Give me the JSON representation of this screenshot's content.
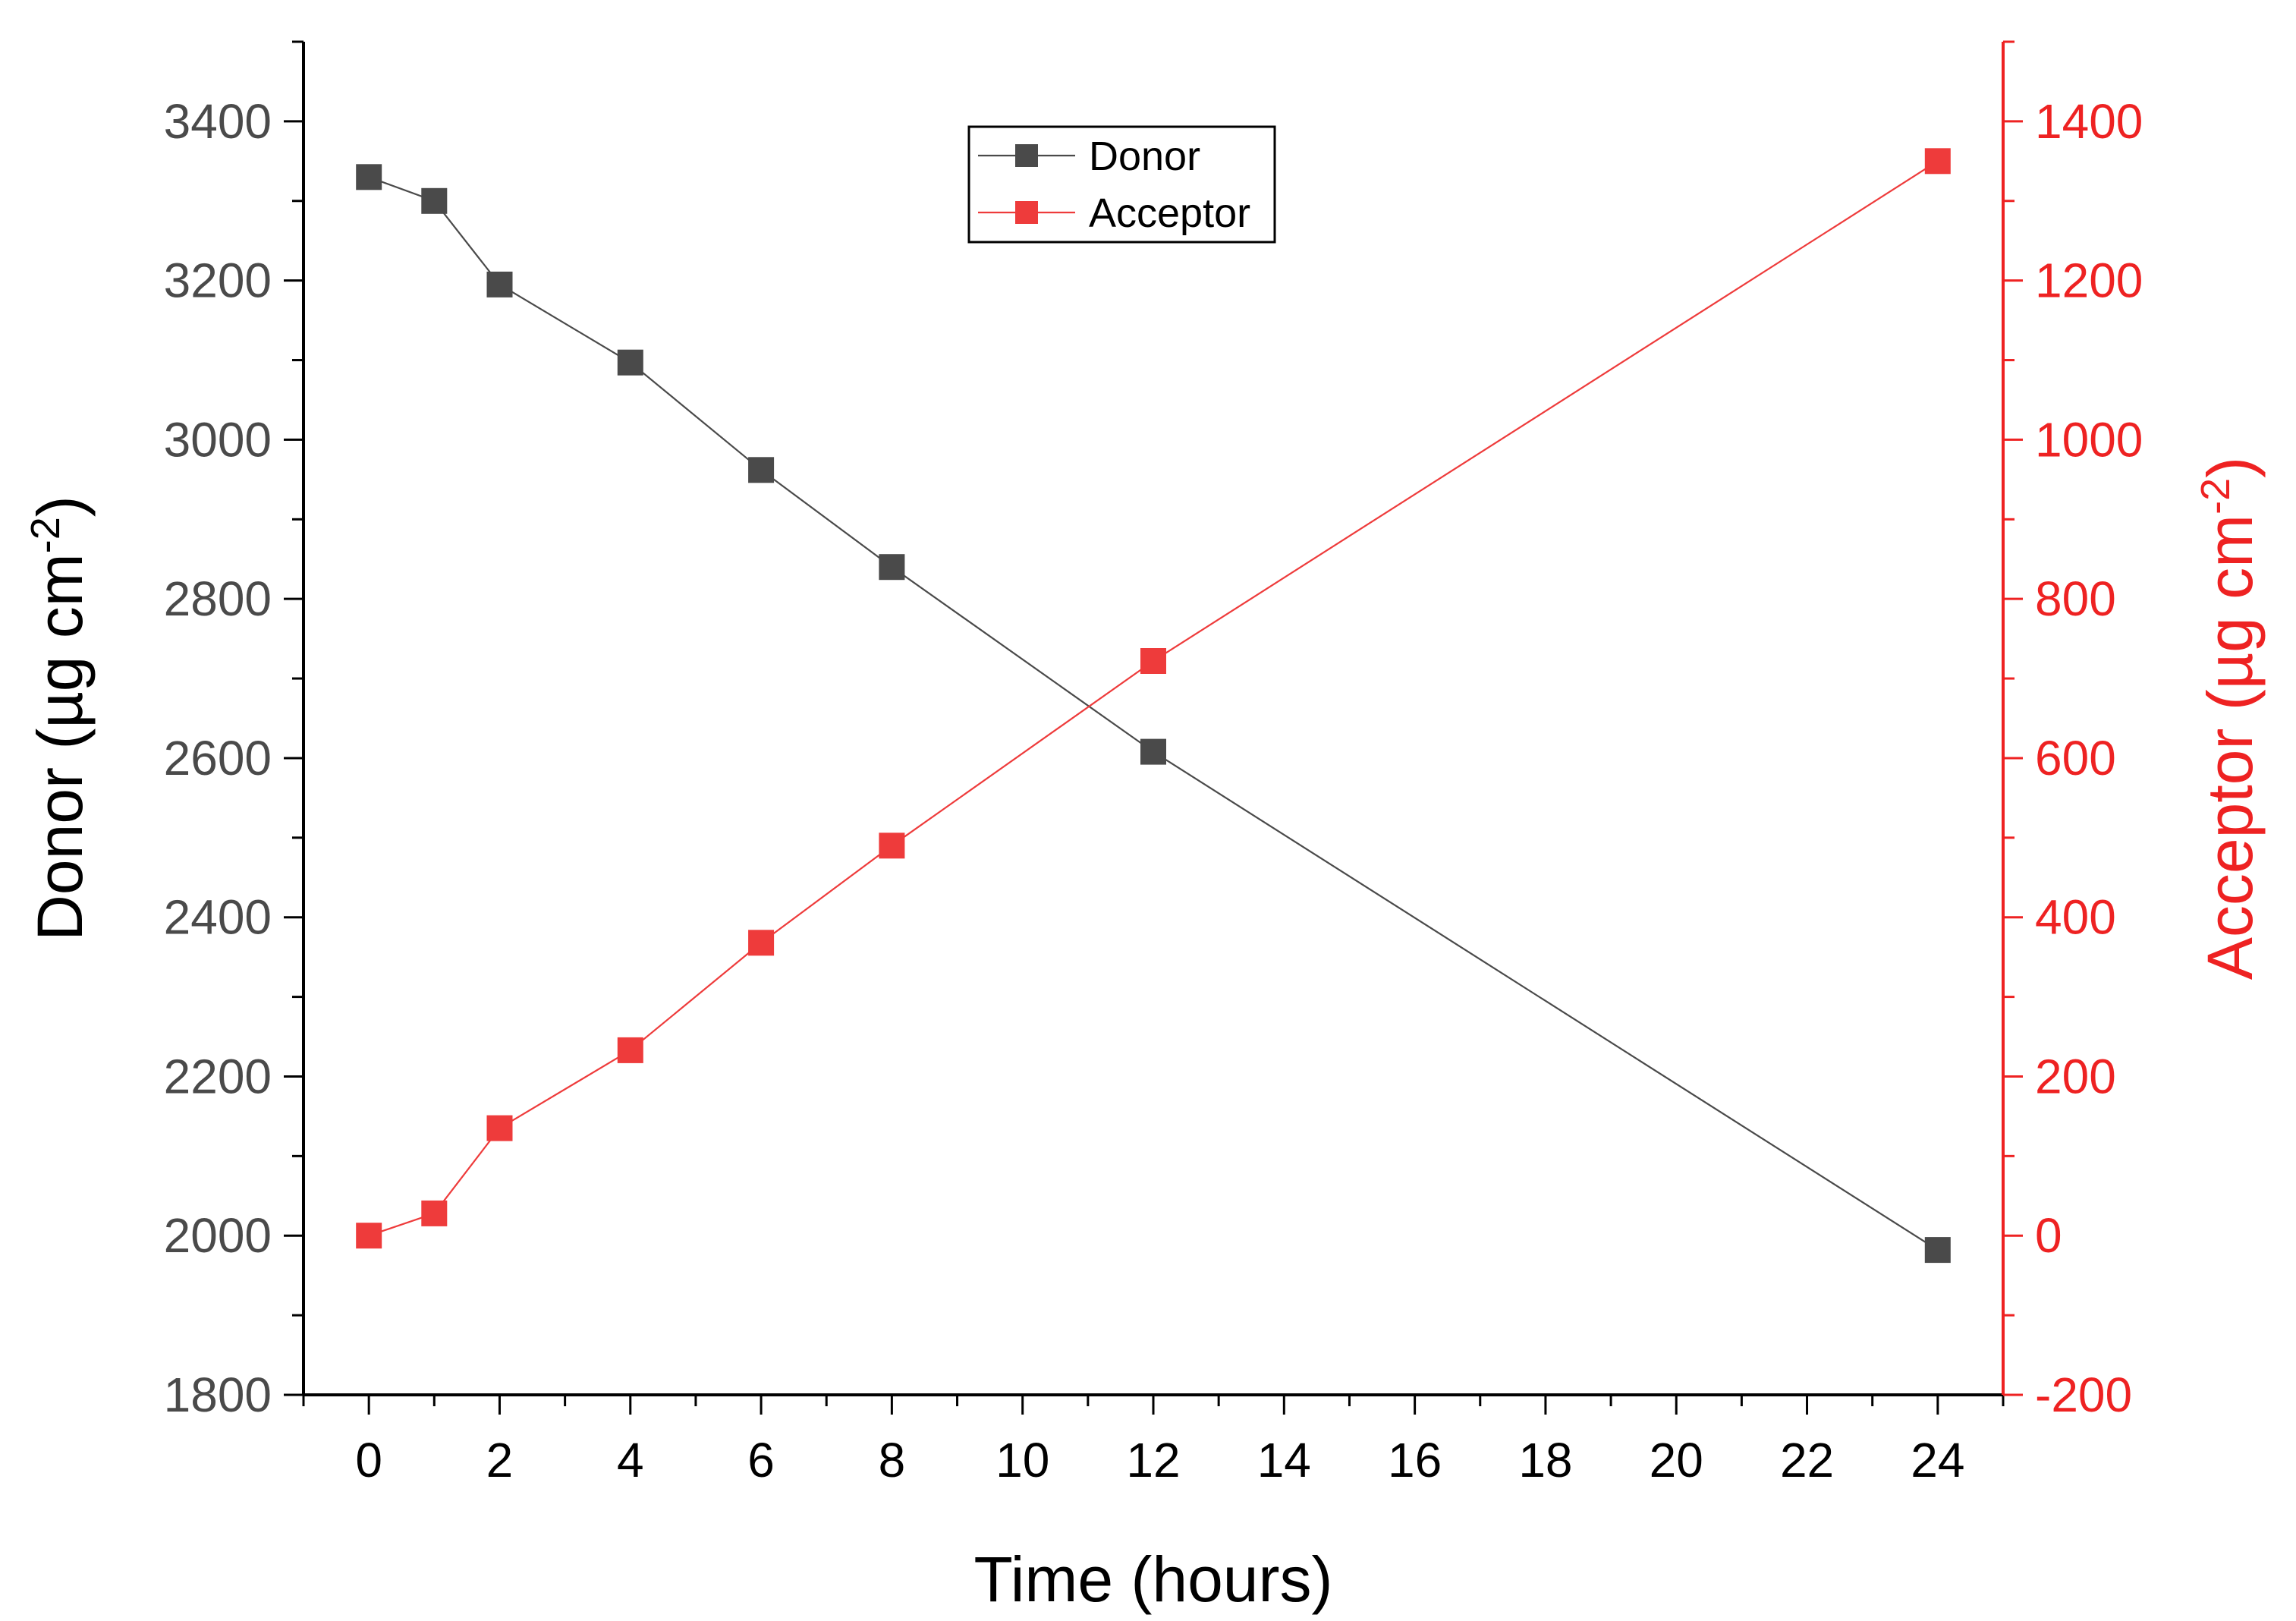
{
  "colors": {
    "left_axis": "#4a4a4a",
    "right_axis": "#ee2222",
    "donor_series": "#4a4a4a",
    "acceptor_series": "#ee3b3b",
    "frame": "#000000"
  },
  "chart_data": {
    "type": "line",
    "markers": "square",
    "grid": false,
    "legend_position": "top-center",
    "x": [
      0,
      1,
      2,
      4,
      6,
      8,
      12,
      24
    ],
    "xlim": [
      -1,
      25
    ],
    "x_ticks": [
      0,
      2,
      4,
      6,
      8,
      10,
      12,
      14,
      16,
      18,
      20,
      22,
      24
    ],
    "x_tick_labels": [
      "0",
      "2",
      "4",
      "6",
      "8",
      "10",
      "12",
      "14",
      "16",
      "18",
      "20",
      "22",
      "24"
    ],
    "xlabel": "Time (hours)",
    "y_left": {
      "label_main": "Donor (µg cm",
      "label_sup": "-2",
      "label_end": ")",
      "lim": [
        1800,
        3500
      ],
      "ticks": [
        1800,
        2000,
        2200,
        2400,
        2600,
        2800,
        3000,
        3200,
        3400
      ],
      "tick_labels": [
        "1800",
        "2000",
        "2200",
        "2400",
        "2600",
        "2800",
        "3000",
        "3200",
        "3400"
      ]
    },
    "y_right": {
      "label_main": "Acceptor (µg cm",
      "label_sup": "-2",
      "label_end": ")",
      "lim": [
        -200,
        1500
      ],
      "ticks": [
        -200,
        0,
        200,
        400,
        600,
        800,
        1000,
        1200,
        1400
      ],
      "tick_labels": [
        "-200",
        "0",
        "200",
        "400",
        "600",
        "800",
        "1000",
        "1200",
        "1400"
      ]
    },
    "series": [
      {
        "name": "Donor",
        "axis": "left",
        "color": "#4a4a4a",
        "values": [
          3330,
          3300,
          3195,
          3097,
          2962,
          2840,
          2608,
          1982
        ]
      },
      {
        "name": "Acceptor",
        "axis": "right",
        "color": "#ee3b3b",
        "values": [
          0,
          28,
          135,
          233,
          368,
          490,
          722,
          1350
        ]
      }
    ]
  }
}
